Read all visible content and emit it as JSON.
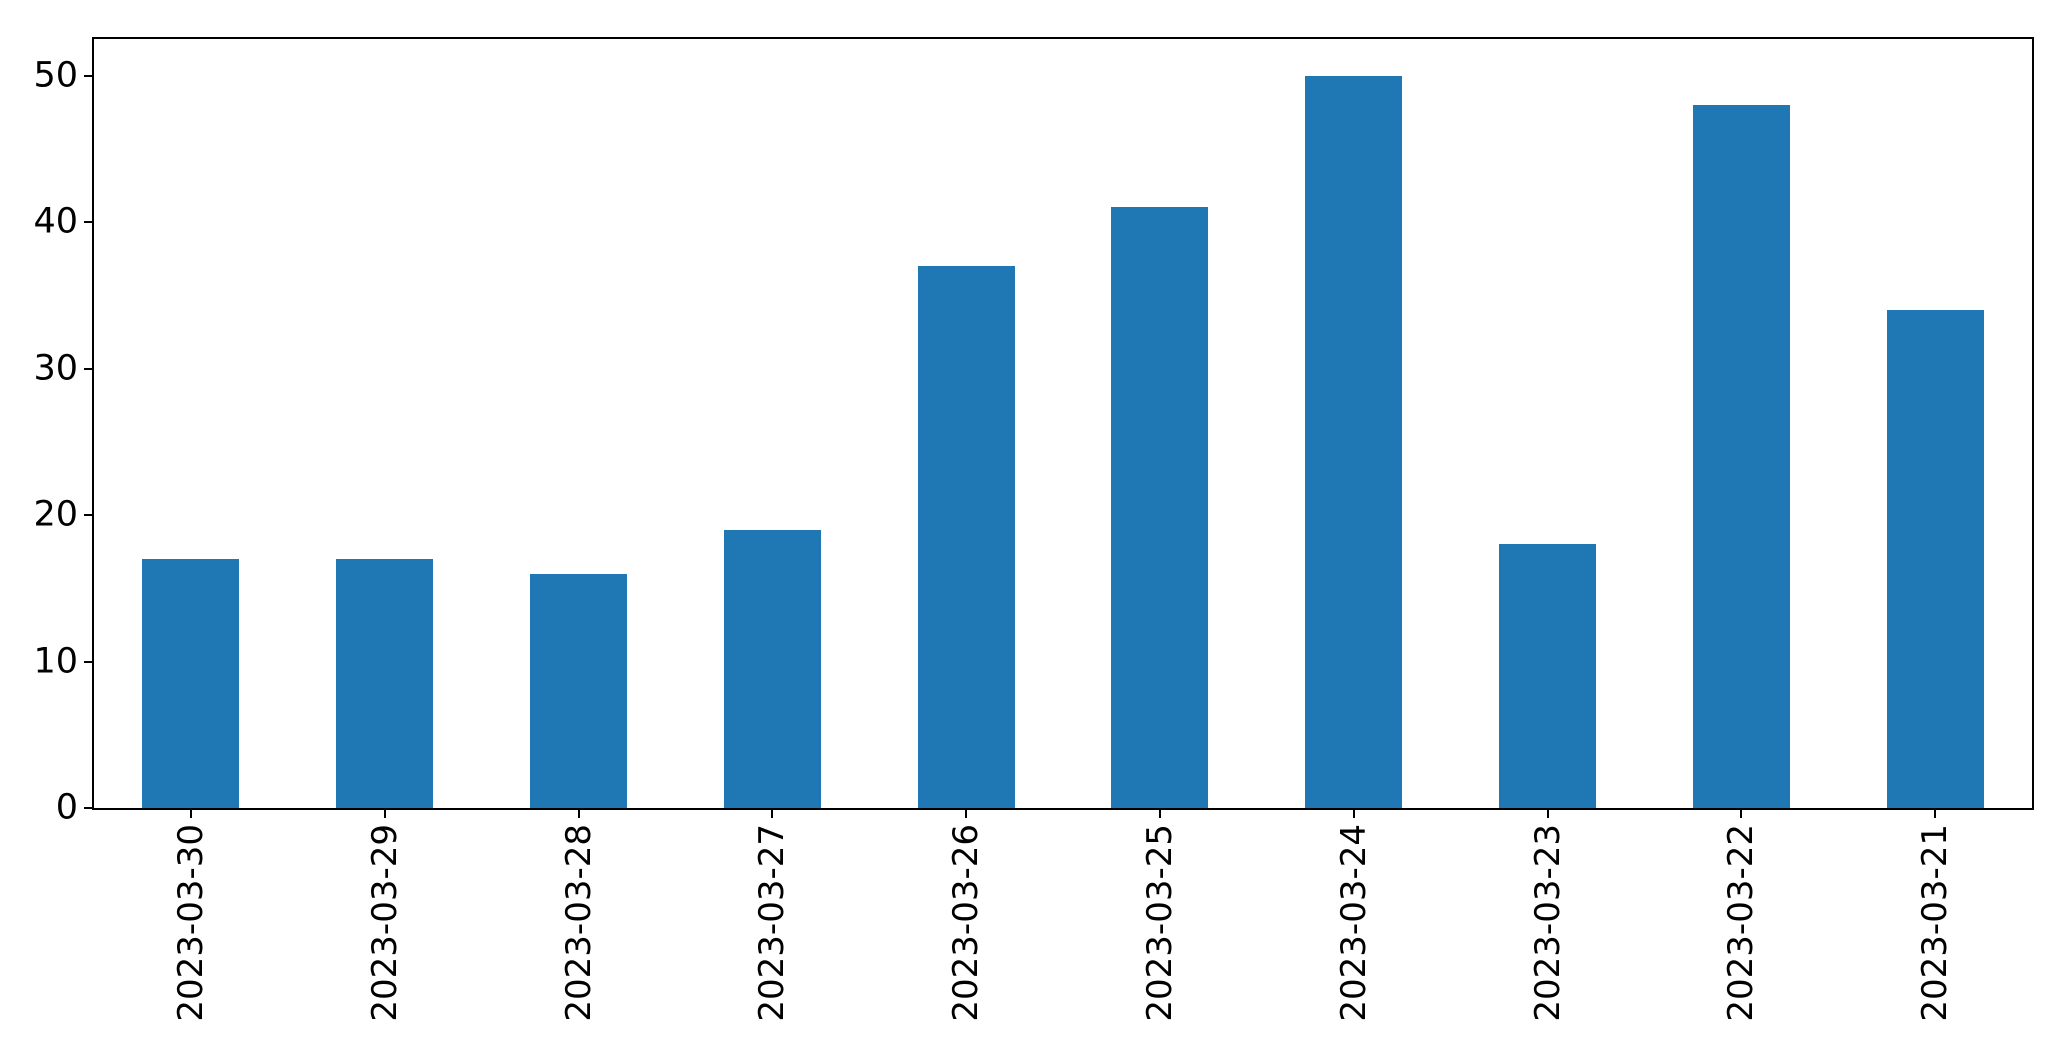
{
  "chart_data": {
    "type": "bar",
    "title": "",
    "xlabel": "",
    "ylabel": "",
    "categories": [
      "2023-03-30",
      "2023-03-29",
      "2023-03-28",
      "2023-03-27",
      "2023-03-26",
      "2023-03-25",
      "2023-03-24",
      "2023-03-23",
      "2023-03-22",
      "2023-03-21"
    ],
    "values": [
      17,
      17,
      16,
      19,
      37,
      41,
      50,
      18,
      48,
      34
    ],
    "yticks": [
      0,
      10,
      20,
      30,
      40,
      50
    ],
    "ylim": [
      0,
      52.5
    ],
    "x_tick_rotation": 90,
    "bar_color": "#1f77b4",
    "axis_color": "#000000",
    "background_color": "#ffffff",
    "grid": false,
    "legend": false,
    "bar_rel_width": 0.5
  }
}
